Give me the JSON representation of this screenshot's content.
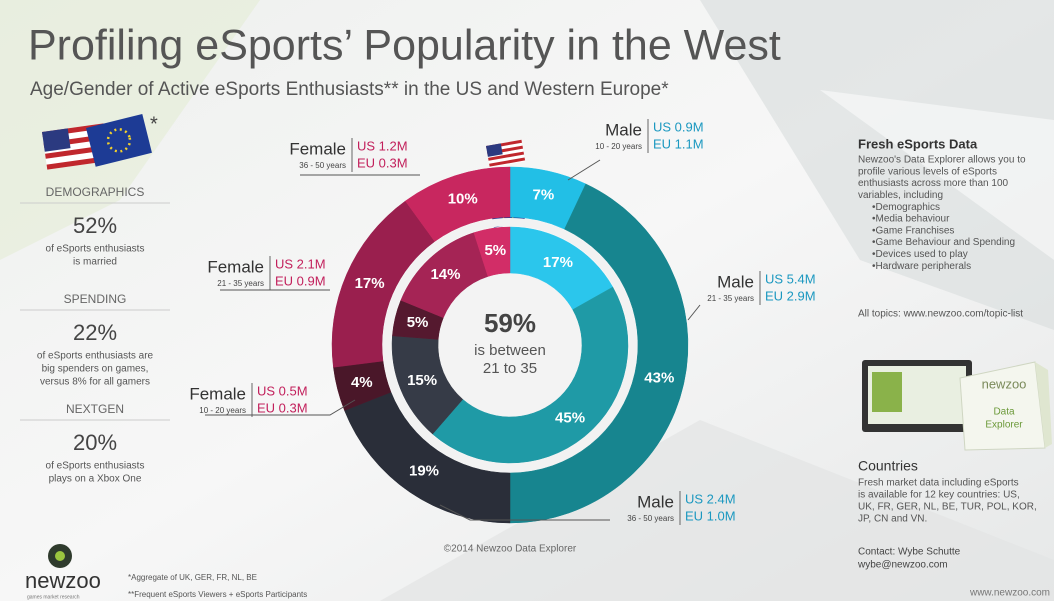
{
  "header": {
    "title": "Profiling eSports’ Popularity in the West",
    "subtitle": "Age/Gender of Active eSports Enthusiasts** in the US and Western Europe*"
  },
  "left_panel": {
    "asterisk": "*",
    "sections": [
      {
        "heading": "DEMOGRAPHICS",
        "stat": "52%",
        "lines": [
          "of eSports enthusiasts",
          "is married"
        ]
      },
      {
        "heading": "SPENDING",
        "stat": "22%",
        "lines": [
          "of eSports enthusiasts are",
          "big spenders on games,",
          "versus 8% for all gamers"
        ]
      },
      {
        "heading": "NEXTGEN",
        "stat": "20%",
        "lines": [
          "of eSports enthusiasts",
          "plays on a Xbox One"
        ]
      }
    ]
  },
  "chart_data": {
    "type": "donut",
    "series": [
      {
        "values": [
          7,
          43,
          19,
          4,
          17,
          10
        ],
        "value_labels": [
          "7%",
          "43%",
          "19%",
          "4%",
          "17%",
          "10%"
        ],
        "colors": [
          "#22bfe6",
          "#17858f",
          "#2a2e39",
          "#4a1729",
          "#9a1f4e",
          "#c8275f"
        ]
      },
      {
        "values": [
          17,
          45,
          15,
          5,
          14,
          5
        ],
        "value_labels": [
          "17%",
          "45%",
          "15%",
          "5%",
          "14%",
          "5%"
        ],
        "colors": [
          "#2bc6ec",
          "#1f9aa6",
          "#363b47",
          "#55192f",
          "#a52455",
          "#d22d67"
        ]
      }
    ],
    "center": {
      "stat": "59%",
      "lines": [
        "is between",
        "21 to 35"
      ]
    },
    "annotations": [
      {
        "gender": "Male",
        "age": "10 - 20 years",
        "us": "US 0.9M",
        "eu": "EU 1.1M"
      },
      {
        "gender": "Male",
        "age": "21 - 35 years",
        "us": "US 5.4M",
        "eu": "EU 2.9M"
      },
      {
        "gender": "Male",
        "age": "36 - 50 years",
        "us": "US 2.4M",
        "eu": "EU 1.0M"
      },
      {
        "gender": "Female",
        "age": "10 - 20 years",
        "us": "US 0.5M",
        "eu": "EU 0.3M"
      },
      {
        "gender": "Female",
        "age": "21 - 35 years",
        "us": "US 2.1M",
        "eu": "EU 0.9M"
      },
      {
        "gender": "Female",
        "age": "36 - 50 years",
        "us": "US 1.2M",
        "eu": "EU 0.3M"
      }
    ]
  },
  "right_panel": {
    "title": "Fresh eSports Data",
    "lines": [
      "Newzoo's Data Explorer allows you to",
      "profile various levels of eSports",
      "enthusiasts across more than 100",
      "variables, including",
      "•Demographics",
      "•Media behaviour",
      "•Game Franchises",
      "•Game Behaviour and Spending",
      "•Devices used to play",
      "•Hardware peripherals"
    ],
    "link": "All topics: www.newzoo.com/topic-list",
    "product": {
      "brand": "newzoo",
      "lines": [
        "Data",
        "Explorer"
      ]
    },
    "countries_title": "Countries",
    "countries_lines": [
      "Fresh market data including eSports",
      "is available for 12 key countries: US,",
      "UK, FR, GER, NL, BE, TUR, POL, KOR,",
      "JP, CN and VN."
    ],
    "contact": [
      "Contact: Wybe Schutte",
      "wybe@newzoo.com"
    ],
    "website": "www.newzoo.com"
  },
  "footer": {
    "credit": "©2014 Newzoo Data Explorer",
    "notes": [
      "*Aggregate of UK, GER, FR, NL, BE",
      "**Frequent eSports Viewers + eSports Participants"
    ],
    "brand": "newzoo",
    "tagline": "games market research"
  }
}
